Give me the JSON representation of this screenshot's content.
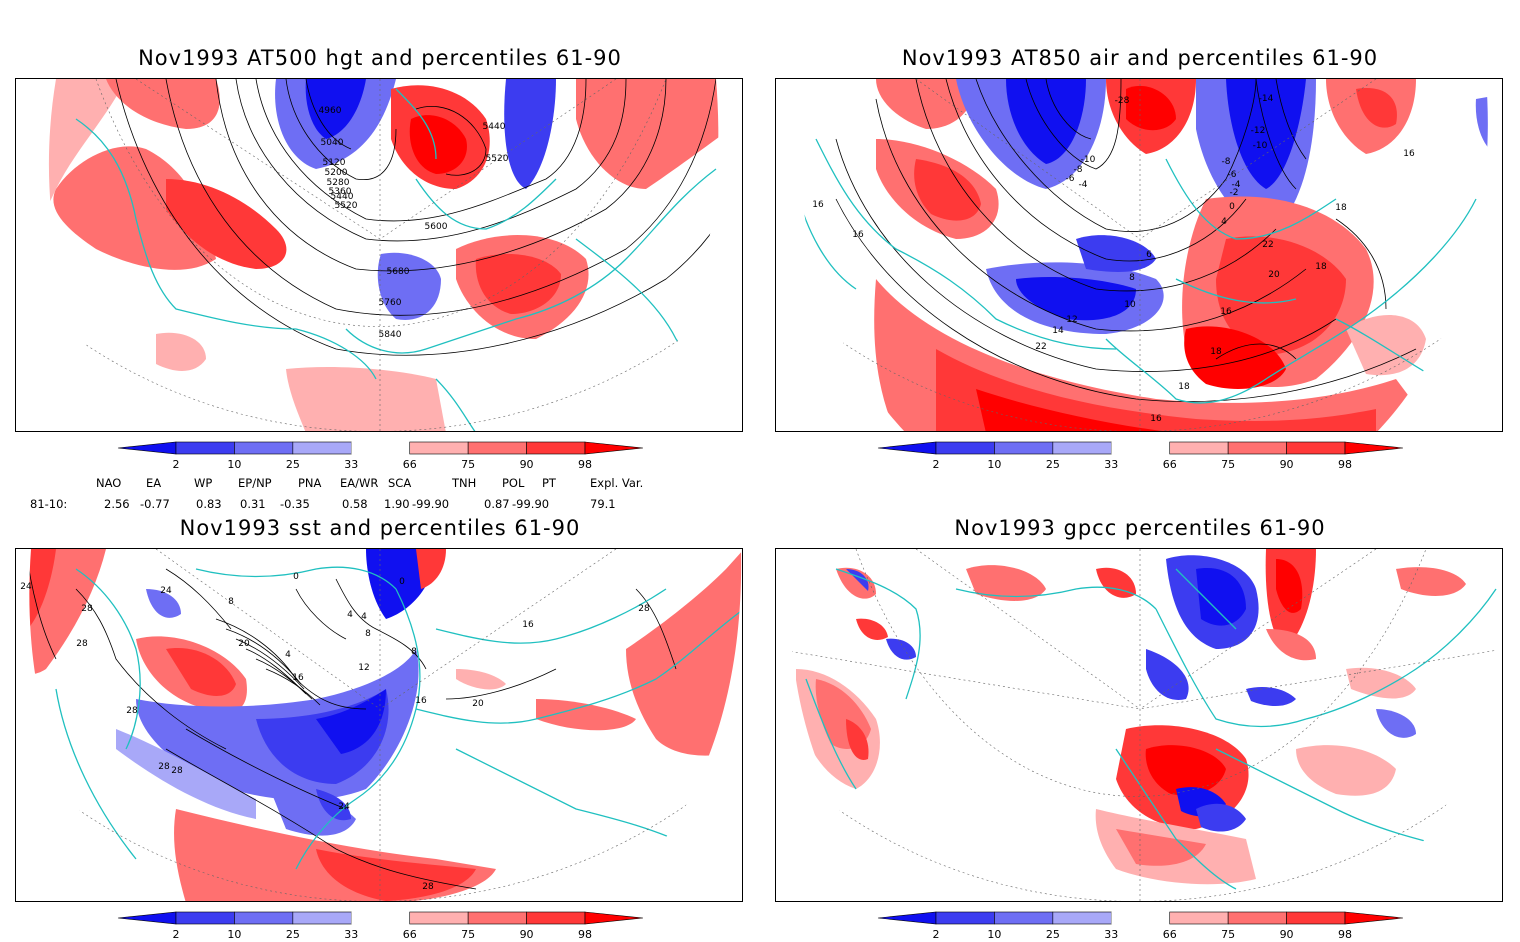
{
  "panels": [
    {
      "id": "hgt",
      "title": "Nov1993 AT500 hgt and percentiles 61-90",
      "contour_labels": [
        "4960",
        "5040",
        "5120",
        "5200",
        "5280",
        "5360",
        "5440",
        "5520",
        "5600",
        "5680",
        "5760",
        "5840",
        "5440",
        "5520"
      ]
    },
    {
      "id": "air",
      "title": "Nov1993 AT850 air and percentiles 61-90",
      "contour_labels": [
        "-28",
        "-14",
        "-12",
        "-10",
        "-8",
        "-6",
        "-4",
        "-10",
        "-8",
        "-6",
        "-4",
        "-2",
        "0",
        "4",
        "6",
        "8",
        "10",
        "12",
        "14",
        "16",
        "18",
        "20",
        "22",
        "16",
        "18",
        "16",
        "18",
        "22",
        "16",
        "18",
        "16"
      ]
    },
    {
      "id": "sst",
      "title": "Nov1993 sst and percentiles 61-90",
      "contour_labels": [
        "24",
        "28",
        "24",
        "28",
        "8",
        "0",
        "0",
        "4",
        "4",
        "8",
        "8",
        "20",
        "4",
        "12",
        "16",
        "16",
        "20",
        "28",
        "28",
        "28",
        "28",
        "24",
        "28",
        "16"
      ]
    },
    {
      "id": "gpcc",
      "title": "Nov1993 gpcc percentiles 61-90",
      "contour_labels": []
    }
  ],
  "colorbar": {
    "ticks": [
      "2",
      "10",
      "25",
      "33",
      "66",
      "75",
      "90",
      "98"
    ],
    "colors": [
      "#1010f0",
      "#3c3cf0",
      "#6e6ef4",
      "#a8a8f8",
      "#ffffff",
      "#ffb0b0",
      "#ff7070",
      "#ff3838",
      "#ff0000"
    ]
  },
  "indices": {
    "headers": [
      "NAO",
      "EA",
      "WP",
      "EP/NP",
      "PNA",
      "EA/WR",
      "SCA",
      "TNH",
      "POL",
      "PT",
      "Expl. Var."
    ],
    "row_label": "81-10:",
    "values": [
      "2.56",
      "-0.77",
      "0.83",
      "0.31",
      "-0.35",
      "0.58",
      "1.90",
      "-99.90",
      "0.87",
      "-99.90",
      "79.1"
    ]
  },
  "colors": {
    "coast": "#20c0c0",
    "anomaly_red": "#ff3838",
    "anomaly_blue": "#2828e8"
  }
}
